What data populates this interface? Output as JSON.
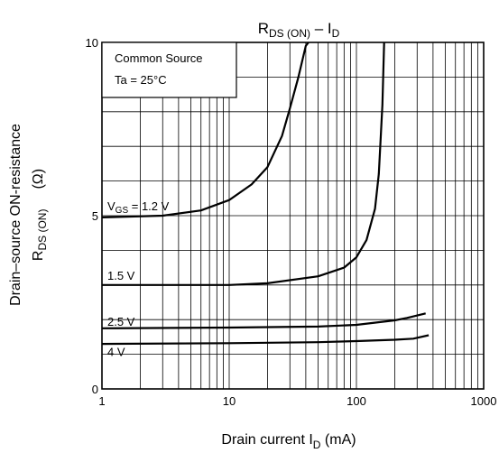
{
  "chart_data": {
    "type": "line",
    "title": {
      "main": "R",
      "sub": "DS (ON)",
      "sep": " – I",
      "sub2": "D"
    },
    "xlabel": {
      "main": "Drain current   I",
      "sub": "D",
      "unit": "   (mA)"
    },
    "ylabel": {
      "line1": "Drain–source ON-resistance",
      "line2_main": "R",
      "line2_sub": "DS (ON)",
      "line2_unit": "(Ω)"
    },
    "xscale": "log",
    "xlim": [
      1,
      1000
    ],
    "ylim": [
      0,
      10
    ],
    "xticks": [
      {
        "value": 1,
        "label": "1"
      },
      {
        "value": 10,
        "label": "10"
      },
      {
        "value": 100,
        "label": "100"
      },
      {
        "value": 1000,
        "label": "1000"
      }
    ],
    "yticks": [
      {
        "value": 0,
        "label": "0"
      },
      {
        "value": 5,
        "label": "5"
      },
      {
        "value": 10,
        "label": "10"
      }
    ],
    "grid": true,
    "legend_box": {
      "line1": "Common Source",
      "line2": "Ta = 25°C",
      "placement": "top-left"
    },
    "series": [
      {
        "name": "VGS = 1.2 V",
        "label_main": "V",
        "label_sub": "GS",
        "label_rest": " = 1.2 V",
        "label_at": [
          1,
          5.28
        ],
        "points": [
          [
            1,
            4.95
          ],
          [
            3,
            5.0
          ],
          [
            6,
            5.15
          ],
          [
            10,
            5.45
          ],
          [
            15,
            5.9
          ],
          [
            20,
            6.4
          ],
          [
            26,
            7.3
          ],
          [
            30,
            8.1
          ],
          [
            35,
            9.0
          ],
          [
            40,
            9.9
          ],
          [
            42,
            10.0
          ]
        ]
      },
      {
        "name": "1.5 V",
        "label_main": "1.5 V",
        "label_at": [
          1,
          3.28
        ],
        "points": [
          [
            1,
            3.0
          ],
          [
            10,
            3.0
          ],
          [
            20,
            3.05
          ],
          [
            50,
            3.25
          ],
          [
            80,
            3.5
          ],
          [
            100,
            3.8
          ],
          [
            120,
            4.3
          ],
          [
            140,
            5.2
          ],
          [
            150,
            6.2
          ],
          [
            160,
            8.2
          ],
          [
            165,
            10.0
          ]
        ]
      },
      {
        "name": "2.5 V",
        "label_main": "2.5 V",
        "label_at": [
          1,
          1.95
        ],
        "points": [
          [
            1,
            1.75
          ],
          [
            10,
            1.77
          ],
          [
            50,
            1.8
          ],
          [
            100,
            1.85
          ],
          [
            200,
            1.98
          ],
          [
            250,
            2.05
          ],
          [
            350,
            2.18
          ]
        ]
      },
      {
        "name": "4 V",
        "label_main": "4 V",
        "label_at": [
          1,
          1.08
        ],
        "points": [
          [
            1,
            1.3
          ],
          [
            10,
            1.32
          ],
          [
            50,
            1.35
          ],
          [
            100,
            1.38
          ],
          [
            200,
            1.42
          ],
          [
            280,
            1.45
          ],
          [
            370,
            1.55
          ]
        ]
      }
    ]
  }
}
